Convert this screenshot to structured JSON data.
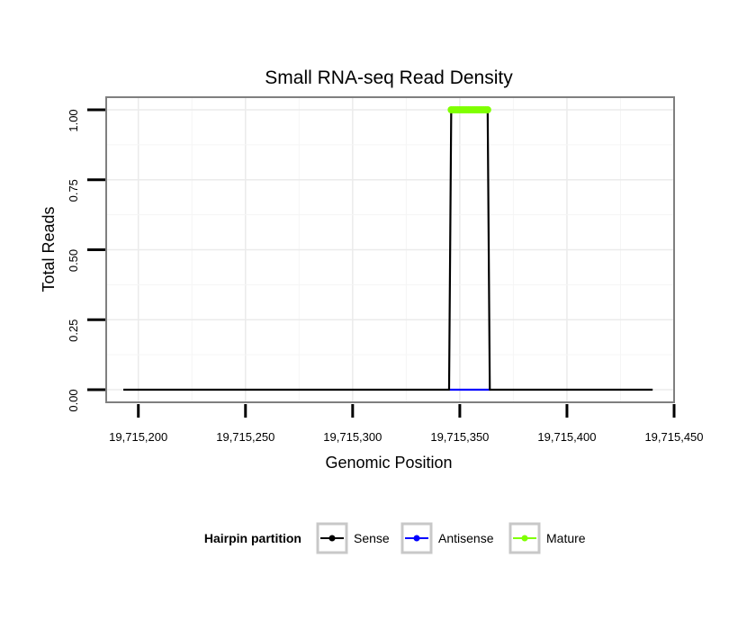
{
  "chart_data": {
    "type": "line",
    "title": "Small RNA-seq Read Density",
    "xlabel": "Genomic Position",
    "ylabel": "Total Reads",
    "xlim": [
      19715185,
      19715450
    ],
    "ylim": [
      -0.045,
      1.045
    ],
    "x_ticks": [
      19715200,
      19715250,
      19715300,
      19715350,
      19715400,
      19715450
    ],
    "x_tick_labels": [
      "19,715,200",
      "19,715,250",
      "19,715,300",
      "19,715,350",
      "19,715,400",
      "19,715,450"
    ],
    "y_ticks": [
      0,
      0.25,
      0.5,
      0.75,
      1.0
    ],
    "y_tick_labels": [
      "0.00",
      "0.25",
      "0.50",
      "0.75",
      "1.00"
    ],
    "grid": true,
    "legend_position": "bottom",
    "legend_title": "Hairpin partition",
    "series": [
      {
        "name": "Sense",
        "color": "#000000",
        "x": [
          19715193,
          19715345,
          19715346,
          19715363,
          19715364,
          19715440
        ],
        "y": [
          0,
          0,
          1,
          1,
          0,
          0
        ]
      },
      {
        "name": "Antisense",
        "color": "#0000ff",
        "x": [
          19715345,
          19715364
        ],
        "y": [
          0,
          0
        ]
      },
      {
        "name": "Mature",
        "color": "#7fff00",
        "x": [
          19715346,
          19715347,
          19715348,
          19715349,
          19715350,
          19715351,
          19715352,
          19715353,
          19715354,
          19715355,
          19715356,
          19715357,
          19715358,
          19715359,
          19715360,
          19715361,
          19715362,
          19715363
        ],
        "y": [
          1,
          1,
          1,
          1,
          1,
          1,
          1,
          1,
          1,
          1,
          1,
          1,
          1,
          1,
          1,
          1,
          1,
          1
        ]
      }
    ]
  }
}
